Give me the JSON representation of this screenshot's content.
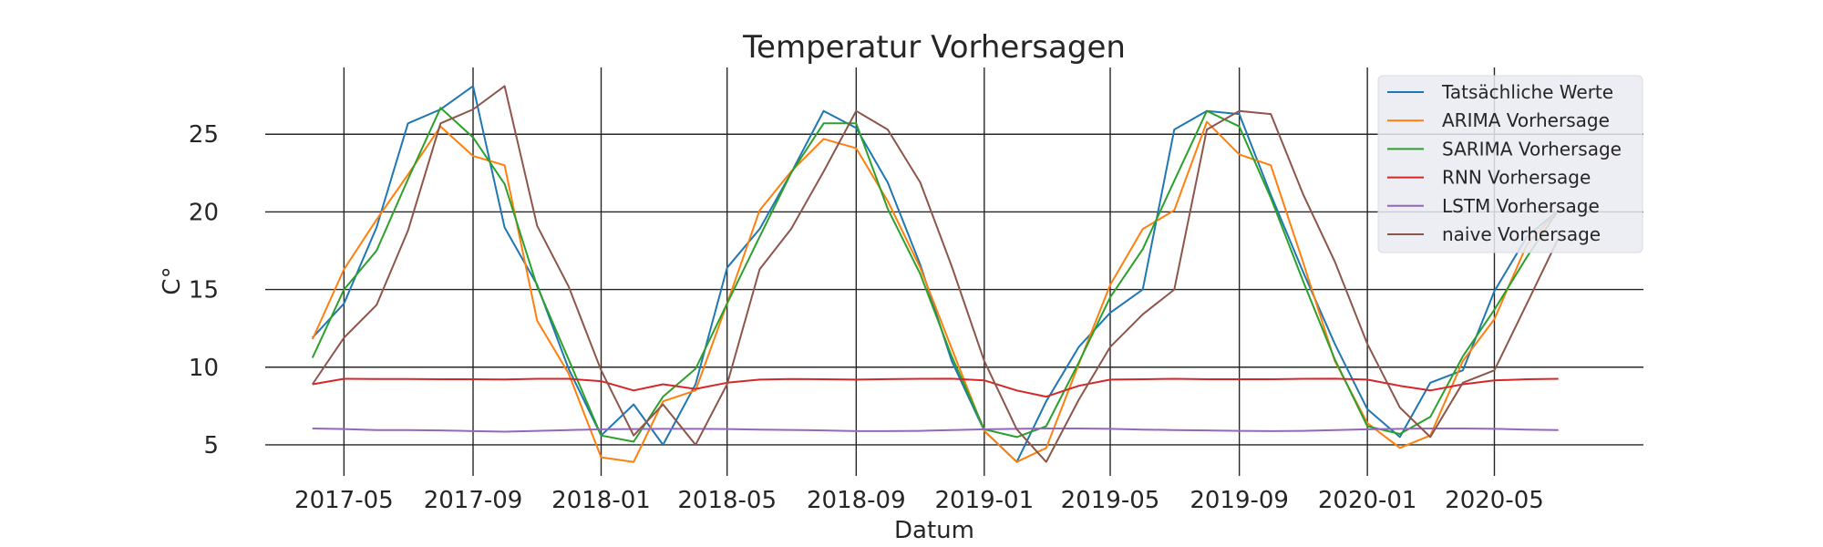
{
  "chart_data": {
    "type": "line",
    "title": "Temperatur Vorhersagen",
    "xlabel": "Datum",
    "ylabel": "C°",
    "xlim": [
      "2017-02-15",
      "2020-09-20"
    ],
    "ylim": [
      3.0,
      29.3
    ],
    "xticks": [
      "2017-05",
      "2017-09",
      "2018-01",
      "2018-05",
      "2018-09",
      "2019-01",
      "2019-05",
      "2019-09",
      "2020-01",
      "2020-05"
    ],
    "yticks": [
      5,
      10,
      15,
      20,
      25
    ],
    "grid": true,
    "legend_position": "top-right",
    "x": [
      "2017-04",
      "2017-05",
      "2017-06",
      "2017-07",
      "2017-08",
      "2017-09",
      "2017-10",
      "2017-11",
      "2017-12",
      "2018-01",
      "2018-02",
      "2018-03",
      "2018-04",
      "2018-05",
      "2018-06",
      "2018-07",
      "2018-08",
      "2018-09",
      "2018-10",
      "2018-11",
      "2018-12",
      "2019-01",
      "2019-02",
      "2019-03",
      "2019-04",
      "2019-05",
      "2019-06",
      "2019-07",
      "2019-08",
      "2019-09",
      "2019-10",
      "2019-11",
      "2019-12",
      "2020-01",
      "2020-02",
      "2020-03",
      "2020-04",
      "2020-05",
      "2020-06",
      "2020-07"
    ],
    "series": [
      {
        "name": "Tatsächliche Werte",
        "color": "#1f77b4",
        "values": [
          11.9,
          14.1,
          19.0,
          25.7,
          26.6,
          28.1,
          19.0,
          15.3,
          9.9,
          5.6,
          7.6,
          5.0,
          8.9,
          16.4,
          18.9,
          22.5,
          26.5,
          25.4,
          21.9,
          16.6,
          10.4,
          5.9,
          3.9,
          7.8,
          11.3,
          13.5,
          15.0,
          25.3,
          26.5,
          26.3,
          21.1,
          16.1,
          11.5,
          7.3,
          5.5,
          9.0,
          9.8,
          14.9,
          18.4,
          20.1
        ]
      },
      {
        "name": "ARIMA Vorhersage",
        "color": "#ff7f0e",
        "values": [
          11.8,
          16.3,
          19.5,
          22.4,
          25.5,
          23.6,
          23.0,
          13.0,
          9.6,
          4.2,
          3.9,
          7.8,
          8.5,
          14.1,
          20.1,
          22.6,
          24.7,
          24.1,
          20.7,
          16.4,
          11.2,
          5.9,
          3.9,
          4.8,
          10.2,
          15.3,
          18.9,
          20.1,
          25.8,
          23.7,
          23.0,
          16.7,
          10.4,
          6.4,
          4.8,
          5.6,
          10.4,
          13.1,
          17.9,
          20.1
        ]
      },
      {
        "name": "SARIMA Vorhersage",
        "color": "#2ca02c",
        "values": [
          10.6,
          15.0,
          17.5,
          22.1,
          26.7,
          24.8,
          21.8,
          15.2,
          10.5,
          5.6,
          5.2,
          8.1,
          9.9,
          14.1,
          18.4,
          22.5,
          25.7,
          25.7,
          20.2,
          16.0,
          10.7,
          6.0,
          5.5,
          6.2,
          10.3,
          14.5,
          17.6,
          22.0,
          26.5,
          25.5,
          20.9,
          15.5,
          10.5,
          6.2,
          5.7,
          6.8,
          10.7,
          13.7,
          17.1,
          20.1
        ]
      },
      {
        "name": "RNN Vorhersage",
        "color": "#d62728",
        "values": [
          8.9,
          9.25,
          9.24,
          9.24,
          9.22,
          9.22,
          9.21,
          9.25,
          9.25,
          9.1,
          8.5,
          8.9,
          8.6,
          9.0,
          9.2,
          9.24,
          9.22,
          9.2,
          9.23,
          9.25,
          9.26,
          9.15,
          8.5,
          8.1,
          8.8,
          9.2,
          9.22,
          9.25,
          9.22,
          9.22,
          9.22,
          9.25,
          9.26,
          9.2,
          8.8,
          8.5,
          8.9,
          9.15,
          9.22,
          9.25
        ]
      },
      {
        "name": "LSTM Vorhersage",
        "color": "#9467bd",
        "values": [
          6.05,
          6.02,
          5.95,
          5.95,
          5.93,
          5.88,
          5.85,
          5.9,
          5.95,
          6.0,
          6.02,
          6.03,
          6.03,
          6.02,
          5.98,
          5.96,
          5.93,
          5.88,
          5.88,
          5.9,
          5.95,
          6.0,
          6.03,
          6.05,
          6.05,
          6.03,
          5.98,
          5.95,
          5.93,
          5.9,
          5.88,
          5.9,
          5.95,
          6.0,
          6.03,
          6.05,
          6.05,
          6.03,
          5.98,
          5.95
        ]
      },
      {
        "name": "naive Vorhersage",
        "color": "#8c564b",
        "values": [
          8.9,
          11.9,
          14.0,
          18.8,
          25.7,
          26.6,
          28.1,
          19.1,
          15.2,
          9.8,
          5.6,
          7.6,
          5.0,
          8.9,
          16.3,
          18.9,
          22.6,
          26.5,
          25.3,
          21.9,
          16.5,
          10.4,
          6.0,
          3.9,
          7.9,
          11.3,
          13.4,
          15.0,
          25.3,
          26.5,
          26.3,
          21.1,
          16.8,
          11.5,
          7.4,
          5.5,
          9.0,
          9.8,
          14.1,
          18.3
        ]
      }
    ]
  }
}
